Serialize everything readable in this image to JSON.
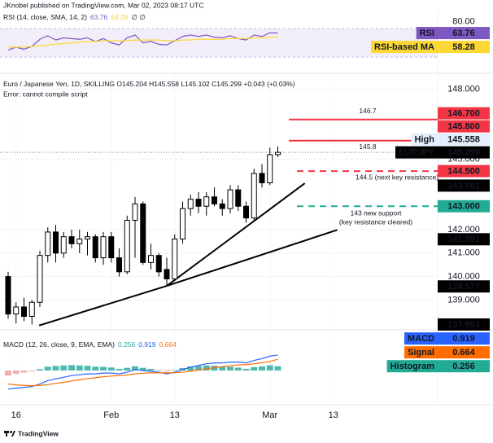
{
  "header": "JKnobel published on TradingView.com, Mar 02, 2023 08:17 UTC",
  "footer": "TradingView",
  "chart_data": [
    {
      "type": "line",
      "title": "RSI (14, close, SMA, 14, 2)",
      "legend_extra": "∅ ∅",
      "ylim": [
        13,
        93
      ],
      "yticks": [
        {
          "value": 80,
          "label": "80.00"
        }
      ],
      "band": [
        30,
        70
      ],
      "band_color": "#7e57c2",
      "series": [
        {
          "name": "RSI",
          "color": "#7e57c2",
          "text_color": "#ffffff",
          "values": [
            40,
            44,
            41,
            45,
            55,
            60,
            54,
            57,
            56,
            55,
            57,
            52,
            56,
            50,
            47,
            57,
            61,
            50,
            52,
            48,
            47,
            53,
            59,
            61,
            59,
            61,
            58,
            57,
            60,
            56,
            54,
            61,
            59,
            64,
            63.76
          ]
        },
        {
          "name": "RSI-based MA",
          "color": "#fdd835",
          "text_color": "#131722",
          "values": [
            44,
            44,
            44,
            45,
            46,
            47,
            48,
            49,
            50,
            51,
            52,
            52,
            53,
            53,
            53,
            53,
            54,
            54,
            54,
            54,
            53,
            53,
            54,
            54,
            55,
            55,
            55,
            55,
            56,
            56,
            56,
            57,
            57,
            58,
            58.28
          ]
        }
      ]
    },
    {
      "type": "candlestick",
      "title": "Euro / Japanese Yen, 1D, SKILLING  O145.204 H145.558 L145.102 C145.299 +0.043 (+0.03%)",
      "subtitle": "Error: cannot compile script",
      "categories": [
        null,
        "16",
        null,
        null,
        null,
        null,
        null,
        null,
        null,
        null,
        null,
        null,
        null,
        "Feb",
        null,
        null,
        null,
        null,
        null,
        null,
        null,
        "13",
        null,
        null,
        null,
        null,
        null,
        null,
        null,
        null,
        null,
        null,
        null,
        "Mar",
        null,
        null,
        null,
        null,
        null,
        null,
        null,
        "13"
      ],
      "open": [
        140.0,
        138.4,
        138.7,
        138.3,
        138.9,
        140.9,
        141.9,
        141.0,
        141.7,
        141.4,
        141.6,
        141.7,
        140.8,
        141.7,
        140.8,
        140.2,
        142.4,
        143.1,
        140.6,
        140.9,
        140.3,
        139.9,
        141.6,
        142.9,
        143.3,
        143.0,
        143.4,
        143.1,
        142.9,
        143.7,
        143.0,
        142.5,
        144.4,
        144.0,
        145.204,
        null,
        null,
        null,
        null,
        null,
        null,
        null
      ],
      "high": [
        140.2,
        138.9,
        139.1,
        139.0,
        141.1,
        142.1,
        142.2,
        141.9,
        142.0,
        142.0,
        141.9,
        141.8,
        141.9,
        141.9,
        141.2,
        142.6,
        143.4,
        143.2,
        141.4,
        141.0,
        140.8,
        141.8,
        143.2,
        143.5,
        143.6,
        143.6,
        143.8,
        143.3,
        143.9,
        143.9,
        143.2,
        144.6,
        144.8,
        145.5,
        145.558,
        null,
        null,
        null,
        null,
        null,
        null,
        null
      ],
      "low": [
        138.2,
        138.0,
        138.1,
        137.953,
        138.7,
        140.6,
        140.6,
        140.8,
        141.2,
        141.0,
        140.9,
        140.6,
        140.5,
        140.6,
        140.0,
        140.1,
        140.8,
        140.5,
        140.3,
        140.0,
        139.577,
        139.8,
        141.4,
        142.6,
        142.7,
        142.6,
        143.0,
        142.6,
        142.7,
        142.8,
        142.3,
        142.4,
        143.8,
        143.9,
        145.102,
        null,
        null,
        null,
        null,
        null,
        null,
        null
      ],
      "close": [
        138.4,
        138.7,
        138.3,
        138.9,
        140.9,
        141.9,
        141.0,
        141.7,
        141.4,
        141.6,
        141.7,
        140.8,
        141.7,
        140.8,
        140.2,
        142.4,
        143.1,
        140.6,
        140.9,
        140.2,
        139.9,
        141.6,
        142.9,
        143.3,
        143.0,
        143.4,
        143.1,
        142.9,
        143.7,
        143.0,
        142.5,
        144.4,
        144.0,
        145.2,
        145.299,
        null,
        null,
        null,
        null,
        null,
        null,
        null
      ],
      "ylim": [
        137.9,
        148.5
      ],
      "yticks": [
        {
          "value": 148,
          "label": "148.000"
        },
        {
          "value": 145,
          "label": "145.000"
        },
        {
          "value": 142,
          "label": "142.000"
        },
        {
          "value": 141,
          "label": "141.000"
        },
        {
          "value": 140,
          "label": "140.000"
        },
        {
          "value": 139,
          "label": "139.000"
        }
      ],
      "grid": true,
      "price_lines": [
        {
          "value": 146.7,
          "label": "146.700",
          "note": [
            "146.7"
          ],
          "color": "#f23645",
          "dashed": false
        },
        {
          "value": 145.8,
          "label": "145.800",
          "note": [
            "145.8"
          ],
          "color": "#f23645",
          "dashed": false
        },
        {
          "value": 144.5,
          "label": "144.500",
          "note": [
            "144.5 (next key resistance)"
          ],
          "color": "#f23645",
          "dashed": true
        },
        {
          "value": 143,
          "label": "143.000",
          "note": [
            "143 new support",
            "(key resistance cleared)"
          ],
          "color": "#22ab94",
          "dashed": true
        }
      ],
      "axis_labels": [
        {
          "value": 145.558,
          "label": "145.558",
          "tag": "High",
          "color": "#e3effd",
          "text_color": "#131722"
        },
        {
          "value": 145.299,
          "label": "145.299",
          "tag": "EURJPY",
          "color": "#000000",
          "text_color": "#ffffff",
          "last_price": true
        },
        {
          "value": 143.881,
          "label": "143.881",
          "color": "#000000",
          "text_color": "#ffffff"
        },
        {
          "value": 141.591,
          "label": "141.591",
          "color": "#000000",
          "text_color": "#ffffff"
        },
        {
          "value": 139.577,
          "label": "139.577",
          "color": "#000000",
          "text_color": "#ffffff"
        },
        {
          "value": 137.953,
          "label": "137.953",
          "color": "#000000",
          "text_color": "#ffffff"
        }
      ],
      "trendlines": [
        {
          "from": [
            3.9,
            137.91
          ],
          "to": [
            20,
            139.6
          ]
        },
        {
          "from": [
            20,
            139.6
          ],
          "to": [
            37.4,
            143.98
          ]
        },
        {
          "from": [
            20,
            139.6
          ],
          "to": [
            41.5,
            141.99
          ]
        }
      ],
      "trendline_color": "#000000"
    },
    {
      "type": "macd",
      "title": "MACD (12, 26, close, 9, EMA, EMA)",
      "ylim": [
        -1.93,
        2.17
      ],
      "histogram": {
        "name": "Histogram",
        "color": "#26a69a",
        "negative_color": "#ef9a9a",
        "label_color": "#22ab94",
        "values": [
          -0.3,
          -0.2,
          -0.12,
          -0.05,
          0.08,
          0.23,
          0.27,
          0.3,
          0.32,
          0.3,
          0.28,
          0.23,
          0.22,
          0.18,
          0.1,
          0.16,
          0.25,
          0.16,
          0.09,
          0.03,
          -0.06,
          0.03,
          0.15,
          0.24,
          0.27,
          0.3,
          0.28,
          0.22,
          0.22,
          0.17,
          0.1,
          0.2,
          0.24,
          0.31,
          0.256
        ]
      },
      "series": [
        {
          "name": "MACD",
          "color": "#2962ff",
          "values": [
            -1.1,
            -1.05,
            -1.0,
            -0.95,
            -0.8,
            -0.6,
            -0.5,
            -0.4,
            -0.3,
            -0.25,
            -0.2,
            -0.2,
            -0.15,
            -0.15,
            -0.2,
            -0.1,
            0.05,
            0.0,
            -0.05,
            -0.1,
            -0.2,
            -0.1,
            0.05,
            0.2,
            0.3,
            0.4,
            0.45,
            0.45,
            0.5,
            0.5,
            0.45,
            0.6,
            0.7,
            0.85,
            0.919
          ]
        },
        {
          "name": "Signal",
          "color": "#ff6d00",
          "values": [
            -0.8,
            -0.85,
            -0.88,
            -0.9,
            -0.88,
            -0.83,
            -0.77,
            -0.7,
            -0.62,
            -0.55,
            -0.48,
            -0.43,
            -0.37,
            -0.33,
            -0.3,
            -0.26,
            -0.2,
            -0.16,
            -0.14,
            -0.13,
            -0.14,
            -0.13,
            -0.1,
            -0.04,
            0.03,
            0.1,
            0.17,
            0.23,
            0.28,
            0.33,
            0.35,
            0.4,
            0.46,
            0.54,
            0.664
          ]
        }
      ]
    }
  ]
}
